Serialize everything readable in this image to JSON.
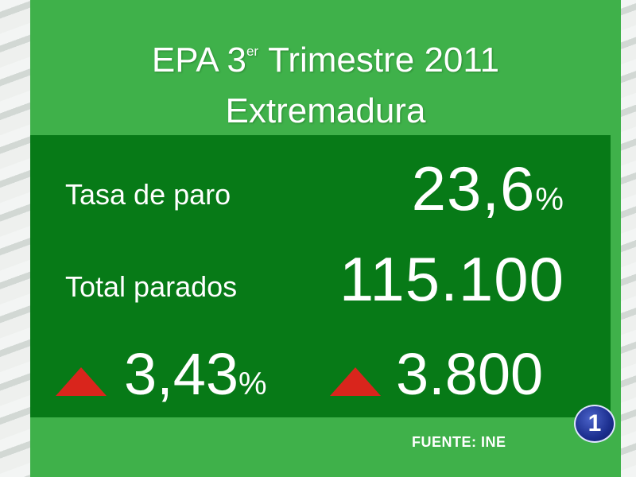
{
  "title": {
    "line1_prefix": "EPA 3",
    "line1_sup": "er",
    "line1_suffix": "Trimestre 2011",
    "line2": "Extremadura"
  },
  "stats": {
    "unemployment_rate": {
      "label": "Tasa de paro",
      "value": "23,6",
      "unit": "%"
    },
    "total_unemployed": {
      "label": "Total parados",
      "value": "115.100"
    }
  },
  "changes": {
    "rate_change": {
      "value": "3,43",
      "unit": "%",
      "direction": "up"
    },
    "count_change": {
      "value": "3.800",
      "direction": "up"
    }
  },
  "source": "FUENTE: INE",
  "logo": {
    "text": "1"
  },
  "colors": {
    "panel": "#3fb14a",
    "inner": "#077a17",
    "arrow_up": "#d9251c"
  }
}
